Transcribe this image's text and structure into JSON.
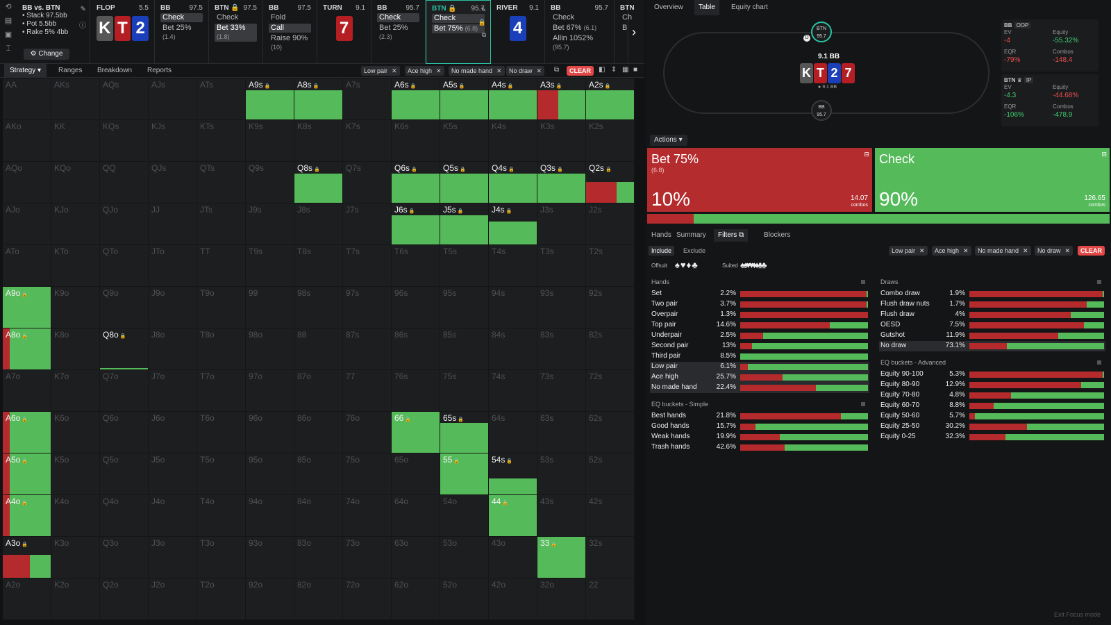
{
  "spot": {
    "title": "BB vs. BTN",
    "stack": "• Stack 97.5bb",
    "pot": "• Pot 5.5bb",
    "rake": "• Rake 5% 4bb",
    "change": "Change"
  },
  "left_tools": [
    "⟲",
    "▤",
    "▣",
    "⌶"
  ],
  "steps": [
    {
      "name": "FLOP",
      "val": "5.5",
      "cards": [
        {
          "r": "K",
          "s": "k"
        },
        {
          "r": "T",
          "s": "h"
        },
        {
          "r": "2",
          "s": "d"
        }
      ],
      "actions": []
    },
    {
      "name": "BB",
      "val": "97.5",
      "cards": [],
      "actions": [
        {
          "t": "Check",
          "sel": true
        },
        {
          "t": "Bet 25%",
          "n": "(1.4)"
        }
      ]
    },
    {
      "name": "BTN 🔒",
      "val": "97.5",
      "cards": [],
      "actions": [
        {
          "t": "Check"
        },
        {
          "t": "Bet 33%",
          "n": "(1.8)",
          "sel": true
        }
      ]
    },
    {
      "name": "BB",
      "val": "97.5",
      "cards": [],
      "actions": [
        {
          "t": "Fold"
        },
        {
          "t": "Call",
          "sel": true
        },
        {
          "t": "Raise 90%",
          "n": "(10)"
        }
      ]
    },
    {
      "name": "TURN",
      "val": "9.1",
      "cards": [
        {
          "r": "7",
          "s": "h"
        }
      ],
      "actions": []
    },
    {
      "name": "BB",
      "val": "95.7",
      "cards": [],
      "actions": [
        {
          "t": "Check",
          "sel": true
        },
        {
          "t": "Bet 25%",
          "n": "(2.3)"
        }
      ]
    },
    {
      "name": "BTN 🔒",
      "val": "95.7",
      "cards": [],
      "actions": [
        {
          "t": "Check",
          "sel": true
        },
        {
          "t": "Bet 75%",
          "n": "(6.8)",
          "sel": true
        }
      ],
      "active": true
    },
    {
      "name": "RIVER",
      "val": "9.1",
      "cards": [
        {
          "r": "4",
          "s": "d"
        }
      ],
      "actions": []
    },
    {
      "name": "BB",
      "val": "95.7",
      "cards": [],
      "actions": [
        {
          "t": "Check"
        },
        {
          "t": "Bet 67%",
          "n": "(6.1)"
        },
        {
          "t": "Allin 1052%",
          "n": "(95.7)"
        }
      ]
    },
    {
      "name": "BTN",
      "val": "",
      "cards": [],
      "actions": [
        {
          "t": "Ch"
        },
        {
          "t": "B"
        }
      ]
    }
  ],
  "tabs": {
    "strategy": "Strategy ▾",
    "ranges": "Ranges",
    "breakdown": "Breakdown",
    "reports": "Reports"
  },
  "chips": [
    "Low pair",
    "Ace high",
    "No made hand",
    "No draw"
  ],
  "clear": "CLEAR",
  "grid": [
    [
      "AA",
      "AKs",
      "AQs",
      "AJs",
      "ATs",
      "A9s",
      "A8s",
      "A7s",
      "A6s",
      "A5s",
      "A4s",
      "A3s",
      "A2s"
    ],
    [
      "AKo",
      "KK",
      "KQs",
      "KJs",
      "KTs",
      "K9s",
      "K8s",
      "K7s",
      "K6s",
      "K5s",
      "K4s",
      "K3s",
      "K2s"
    ],
    [
      "AQo",
      "KQo",
      "QQ",
      "QJs",
      "QTs",
      "Q9s",
      "Q8s",
      "Q7s",
      "Q6s",
      "Q5s",
      "Q4s",
      "Q3s",
      "Q2s"
    ],
    [
      "AJo",
      "KJo",
      "QJo",
      "JJ",
      "JTs",
      "J9s",
      "J8s",
      "J7s",
      "J6s",
      "J5s",
      "J4s",
      "J3s",
      "J2s"
    ],
    [
      "ATo",
      "KTo",
      "QTo",
      "JTo",
      "TT",
      "T9s",
      "T8s",
      "T7s",
      "T6s",
      "T5s",
      "T4s",
      "T3s",
      "T2s"
    ],
    [
      "A9o",
      "K9o",
      "Q9o",
      "J9o",
      "T9o",
      "99",
      "98s",
      "97s",
      "96s",
      "95s",
      "94s",
      "93s",
      "92s"
    ],
    [
      "A8o",
      "K8o",
      "Q8o",
      "J8o",
      "T8o",
      "98o",
      "88",
      "87s",
      "86s",
      "85s",
      "84s",
      "83s",
      "82s"
    ],
    [
      "A7o",
      "K7o",
      "Q7o",
      "J7o",
      "T7o",
      "97o",
      "87o",
      "77",
      "76s",
      "75s",
      "74s",
      "73s",
      "72s"
    ],
    [
      "A6o",
      "K6o",
      "Q6o",
      "J6o",
      "T6o",
      "96o",
      "86o",
      "76o",
      "66",
      "65s",
      "64s",
      "63s",
      "62s"
    ],
    [
      "A5o",
      "K5o",
      "Q5o",
      "J5o",
      "T5o",
      "95o",
      "85o",
      "75o",
      "65o",
      "55",
      "54s",
      "53s",
      "52s"
    ],
    [
      "A4o",
      "K4o",
      "Q4o",
      "J4o",
      "T4o",
      "94o",
      "84o",
      "74o",
      "64o",
      "54o",
      "44",
      "43s",
      "42s"
    ],
    [
      "A3o",
      "K3o",
      "Q3o",
      "J3o",
      "T3o",
      "93o",
      "83o",
      "73o",
      "63o",
      "53o",
      "43o",
      "33",
      "32s"
    ],
    [
      "A2o",
      "K2o",
      "Q2o",
      "J2o",
      "T2o",
      "92o",
      "82o",
      "72o",
      "62o",
      "52o",
      "42o",
      "32o",
      "22"
    ]
  ],
  "cell_strategy": {
    "A9s": {
      "w": 0.7,
      "bet": 0
    },
    "A8s": {
      "w": 0.7,
      "bet": 0
    },
    "A6s": {
      "w": 0.7,
      "bet": 0
    },
    "A5s": {
      "w": 0.7,
      "bet": 0
    },
    "A4s": {
      "w": 0.7,
      "bet": 0
    },
    "A3s": {
      "w": 0.7,
      "bet": 0.43
    },
    "A2s": {
      "w": 0.7,
      "bet": 0
    },
    "Q8s": {
      "w": 0.7,
      "bet": 0
    },
    "Q6s": {
      "w": 0.7,
      "bet": 0
    },
    "Q5s": {
      "w": 0.7,
      "bet": 0
    },
    "Q4s": {
      "w": 0.7,
      "bet": 0
    },
    "Q3s": {
      "w": 0.7,
      "bet": 0
    },
    "Q2s": {
      "w": 0.5,
      "bet": 0.64
    },
    "J6s": {
      "w": 0.7,
      "bet": 0
    },
    "J5s": {
      "w": 0.7,
      "bet": 0
    },
    "J4s": {
      "w": 0.55,
      "bet": 0
    },
    "A9o": {
      "w": 1,
      "bet": 0
    },
    "A8o": {
      "w": 1,
      "bet": 0.14
    },
    "Q8o": {
      "w": 0.03,
      "bet": 0
    },
    "A6o": {
      "w": 1,
      "bet": 0.14
    },
    "66": {
      "w": 1,
      "bet": 0
    },
    "65s": {
      "w": 0.72,
      "bet": 0
    },
    "A5o": {
      "w": 1,
      "bet": 0.14
    },
    "55": {
      "w": 1,
      "bet": 0
    },
    "54s": {
      "w": 0.38,
      "bet": 0
    },
    "A4o": {
      "w": 1,
      "bet": 0.14
    },
    "44": {
      "w": 1,
      "bet": 0
    },
    "A3o": {
      "w": 0.55,
      "bet": 0.57
    },
    "33": {
      "w": 1,
      "bet": 0
    }
  },
  "rtabs": {
    "overview": "Overview",
    "table": "Table",
    "equity": "Equity chart"
  },
  "table": {
    "btn_seat": "BTN",
    "btn_stack": "95.7",
    "bb_seat": "BB",
    "bb_stack": "95.7",
    "pot": "9.1 BB",
    "sub_pot": "9.1 BB",
    "dealer": "D",
    "board": [
      {
        "r": "K",
        "s": "k"
      },
      {
        "r": "T",
        "s": "h"
      },
      {
        "r": "2",
        "s": "d"
      },
      {
        "r": "7",
        "s": "h"
      }
    ]
  },
  "players": [
    {
      "name": "BB",
      "tag": "OOP",
      "ev": "-4",
      "equity": "-55.32%",
      "eqr": "-79%",
      "combos": "-148.4",
      "ev_c": "neg",
      "eq_c": "pos",
      "eqr_c": "neg",
      "cb_c": "neg"
    },
    {
      "name": "BTN ♛",
      "tag": "IP",
      "ev": "-4.3",
      "equity": "-44.68%",
      "eqr": "-106%",
      "combos": "-478.9",
      "ev_c": "pos",
      "eq_c": "neg",
      "eqr_c": "pos",
      "cb_c": "pos"
    }
  ],
  "stat_labels": {
    "ev": "EV",
    "equity": "Equity",
    "eqr": "EQR",
    "combos": "Combos"
  },
  "actions_sel": "Actions ▾",
  "action_boxes": [
    {
      "name": "Bet 75%",
      "sub": "(6.8)",
      "pct": "10%",
      "combos": "14.07",
      "color": "#b42c2e",
      "freq": 0.1
    },
    {
      "name": "Check",
      "sub": "",
      "pct": "90%",
      "combos": "126.65",
      "color": "#55ba5a",
      "freq": 0.9
    }
  ],
  "combos_word": "combos",
  "ftabs": {
    "hands": "Hands",
    "summary": "Summary",
    "filters": "Filters ⧉",
    "blockers": "Blockers"
  },
  "include": "Include",
  "exclude": "Exclude",
  "offsuit": "Offsuit",
  "suited": "Suited",
  "offsuit_suits": "♠♥♦♣",
  "suited_suits": "♠♠♥♥♦♦♣♣",
  "sections": {
    "hands": "Hands",
    "draws": "Draws",
    "eq_simple": "EQ buckets - Simple",
    "eq_adv": "EQ buckets - Advanced"
  },
  "hands": [
    {
      "n": "Set",
      "p": "2.2%",
      "bet": 0.99
    },
    {
      "n": "Two pair",
      "p": "3.7%",
      "bet": 0.99
    },
    {
      "n": "Overpair",
      "p": "1.3%",
      "bet": 1
    },
    {
      "n": "Top pair",
      "p": "14.6%",
      "bet": 0.7
    },
    {
      "n": "Underpair",
      "p": "2.5%",
      "bet": 0.18
    },
    {
      "n": "Second pair",
      "p": "13%",
      "bet": 0.09
    },
    {
      "n": "Third pair",
      "p": "8.5%",
      "bet": 0
    },
    {
      "n": "Low pair",
      "p": "6.1%",
      "bet": 0.06,
      "hl": true
    },
    {
      "n": "Ace high",
      "p": "25.7%",
      "bet": 0.33,
      "hl": true
    },
    {
      "n": "No made hand",
      "p": "22.4%",
      "bet": 0.59,
      "hl": true
    }
  ],
  "draws": [
    {
      "n": "Combo draw",
      "p": "1.9%",
      "bet": 0.99
    },
    {
      "n": "Flush draw nuts",
      "p": "1.7%",
      "bet": 0.87
    },
    {
      "n": "Flush draw",
      "p": "4%",
      "bet": 0.75
    },
    {
      "n": "OESD",
      "p": "7.5%",
      "bet": 0.85
    },
    {
      "n": "Gutshot",
      "p": "11.9%",
      "bet": 0.66
    },
    {
      "n": "No draw",
      "p": "73.1%",
      "bet": 0.28,
      "hl": true
    }
  ],
  "eq_simple": [
    {
      "n": "Best hands",
      "p": "21.8%",
      "bet": 0.79
    },
    {
      "n": "Good hands",
      "p": "15.7%",
      "bet": 0.12
    },
    {
      "n": "Weak hands",
      "p": "19.9%",
      "bet": 0.31
    },
    {
      "n": "Trash hands",
      "p": "42.6%",
      "bet": 0.35
    }
  ],
  "eq_adv": [
    {
      "n": "Equity 90-100",
      "p": "5.3%",
      "bet": 0.99
    },
    {
      "n": "Equity 80-90",
      "p": "12.9%",
      "bet": 0.83
    },
    {
      "n": "Equity 70-80",
      "p": "4.8%",
      "bet": 0.31
    },
    {
      "n": "Equity 60-70",
      "p": "8.8%",
      "bet": 0.18
    },
    {
      "n": "Equity 50-60",
      "p": "5.7%",
      "bet": 0.04
    },
    {
      "n": "Equity 25-50",
      "p": "30.2%",
      "bet": 0.43
    },
    {
      "n": "Equity 0-25",
      "p": "32.3%",
      "bet": 0.27
    }
  ],
  "exit_focus": "Exit Focus mode",
  "colors": {
    "bet": "#b52a2c",
    "check": "#55ba5a",
    "accent": "#2ac3a4"
  }
}
